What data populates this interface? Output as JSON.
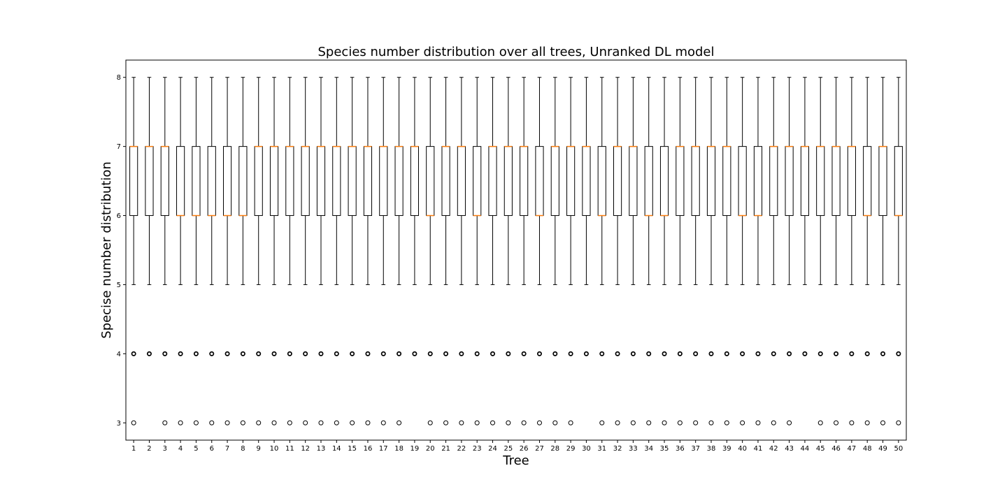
{
  "chart_data": {
    "type": "box",
    "title": "Species number distribution over all trees, Unranked DL model",
    "xlabel": "Tree",
    "ylabel": "Specise number distribution",
    "ylim": [
      2.75,
      8.25
    ],
    "yticks": [
      3,
      4,
      5,
      6,
      7,
      8
    ],
    "grid": false,
    "colors": {
      "box": "#000000",
      "median": "#ff7f0e",
      "flier": "#000000"
    },
    "categories": [
      "1",
      "2",
      "3",
      "4",
      "5",
      "6",
      "7",
      "8",
      "9",
      "10",
      "11",
      "12",
      "13",
      "14",
      "15",
      "16",
      "17",
      "18",
      "19",
      "20",
      "21",
      "22",
      "23",
      "24",
      "25",
      "26",
      "27",
      "28",
      "29",
      "30",
      "31",
      "32",
      "33",
      "34",
      "35",
      "36",
      "37",
      "38",
      "39",
      "40",
      "41",
      "42",
      "43",
      "44",
      "45",
      "46",
      "47",
      "48",
      "49",
      "50"
    ],
    "whisker_low": 5,
    "whisker_high": 8,
    "q1": 6,
    "q3": 7,
    "medians": [
      7,
      7,
      7,
      6,
      6,
      6,
      6,
      6,
      7,
      7,
      7,
      7,
      7,
      7,
      7,
      7,
      7,
      7,
      7,
      6,
      7,
      7,
      6,
      7,
      7,
      7,
      6,
      7,
      7,
      7,
      6,
      7,
      7,
      6,
      6,
      7,
      7,
      7,
      7,
      6,
      6,
      7,
      7,
      7,
      7,
      7,
      7,
      6,
      7,
      6
    ],
    "outliers_4": [
      1,
      1,
      1,
      1,
      1,
      1,
      1,
      1,
      1,
      1,
      1,
      1,
      1,
      1,
      1,
      1,
      1,
      1,
      1,
      1,
      1,
      1,
      1,
      1,
      1,
      1,
      1,
      1,
      1,
      1,
      1,
      1,
      1,
      1,
      1,
      1,
      1,
      1,
      1,
      1,
      1,
      1,
      1,
      1,
      1,
      1,
      1,
      1,
      1,
      1
    ],
    "outliers_3": [
      1,
      0,
      1,
      1,
      1,
      1,
      1,
      1,
      1,
      1,
      1,
      1,
      1,
      1,
      1,
      1,
      1,
      1,
      0,
      1,
      1,
      1,
      1,
      1,
      1,
      1,
      1,
      1,
      1,
      0,
      1,
      1,
      1,
      1,
      1,
      1,
      1,
      1,
      1,
      1,
      1,
      1,
      1,
      0,
      1,
      1,
      1,
      1,
      1,
      1
    ]
  }
}
